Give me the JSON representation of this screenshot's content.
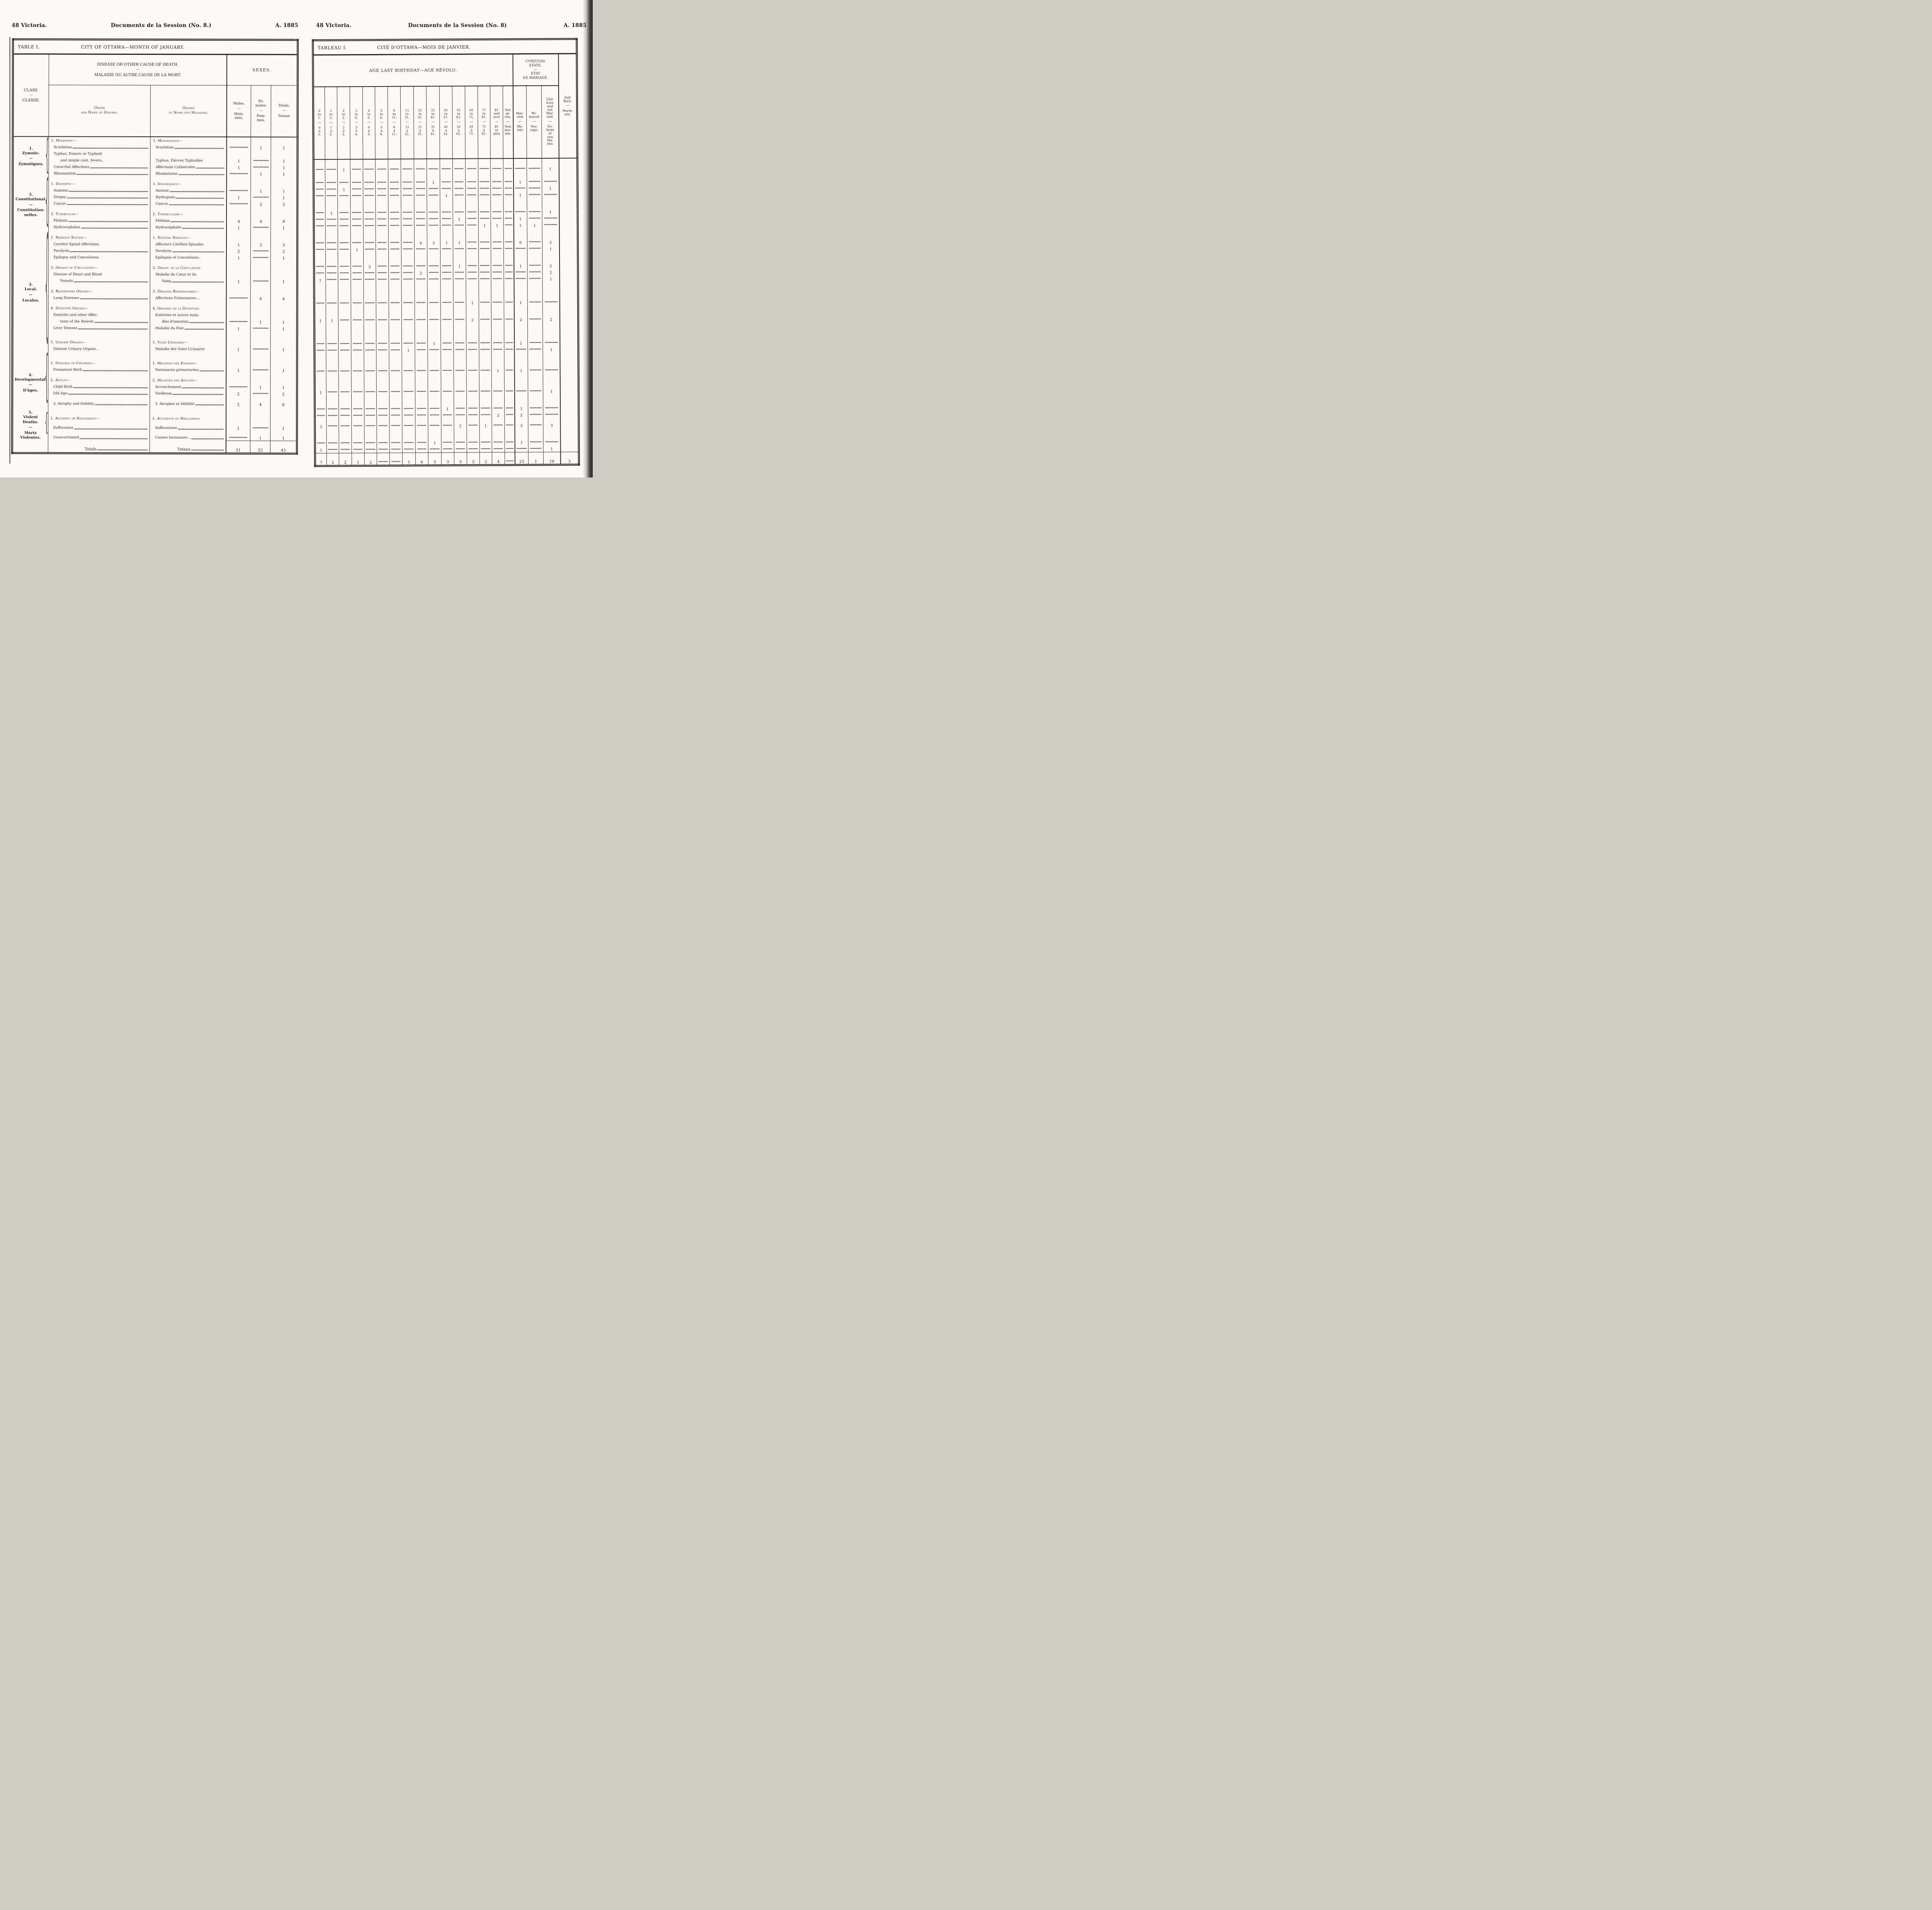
{
  "page_left": {
    "running_header": {
      "left": "48 Victoria.",
      "center": "Documents de la Session (No. 8.)",
      "right": "A. 1885"
    },
    "table": {
      "title": "TABLE I.",
      "caption": "CITY OF OTTAWA—MONTH OF JANUARY.",
      "header": {
        "class": [
          "CLASS.",
          "—",
          "CLASSE."
        ],
        "disease": [
          "DISEASE OR OTHER CAUSE OF DEATH.",
          "—",
          "MALADIE OU AUTRE CAUSE DE LA MORT."
        ],
        "order_en": [
          "Order",
          "and Name of Disease."
        ],
        "order_fr": [
          "Ordres",
          "et Noms des Maladies."
        ],
        "sexes": "SEXES.",
        "males": {
          "en": "Males.",
          "fr": "Hom- mes."
        },
        "females": {
          "en": "Fe- males.",
          "fr": "Fem- mes."
        },
        "totals": {
          "en": "Totals.",
          "fr": "Totaux"
        }
      }
    }
  },
  "page_right": {
    "running_header": {
      "left": "48 Victoria.",
      "center": "Documents de la Session (No. 8)",
      "right": "A. 1885"
    },
    "table": {
      "title": "TABLEAU I.",
      "caption": "CITÉ D'OTTAWA—MOIS DE JANVIER.",
      "age_group": "AGE LAST BIRTHDAY—AGE RÉVOLU.",
      "conjugal_group": [
        "CONJUGAL",
        "STATE.",
        "—",
        "ÉTAT",
        "DE MARIAGE."
      ],
      "age_cols": [
        [
          "0 to 1.",
          "0 à 1."
        ],
        [
          "1 to 2.",
          "1 à 2."
        ],
        [
          "2 to 3.",
          "2 à 3."
        ],
        [
          "3 to 4.",
          "3 à 4."
        ],
        [
          "4 to 5.",
          "4 à 5."
        ],
        [
          "5 to 6.",
          "5 à 6."
        ],
        [
          "6 to 11.",
          "6 à 11."
        ],
        [
          "11 to 21.",
          "11 à 21."
        ],
        [
          "21 to 31.",
          "21 à 31."
        ],
        [
          "31 to 41.",
          "31 à 41."
        ],
        [
          "41 to 51.",
          "41 à 51."
        ],
        [
          "51 to 61.",
          "51 à 61."
        ],
        [
          "61 to 71.",
          "61 à 71."
        ],
        [
          "71 to 81.",
          "71 à 81."
        ],
        [
          "81 and over",
          "81 et plus"
        ],
        [
          "Not gi- ven.",
          "Non don- nés."
        ]
      ],
      "conjugal_cols": [
        [
          "Mar- ried",
          "Ma- riés"
        ],
        [
          "Wi- dowed",
          "Veu- vage."
        ],
        [
          "Chil- dren and not Mar- ried.",
          "En- fants et non Ma- riés."
        ]
      ],
      "stillborn_col": [
        "Still Born.",
        "Morts- nés."
      ]
    }
  },
  "classes": [
    {
      "num": "1.",
      "en": "Zymotic.",
      "fr": "Zymotiques.",
      "rows": [
        {
          "t": "g",
          "en": "1. Miasmatic—",
          "fr": "1. Miasmatique—"
        },
        {
          "t": "v",
          "en": "Scarlatina",
          "fr": "Scarlatine",
          "le": 1,
          "lf": 1,
          "m": "",
          "f": "1",
          "tt": "1",
          "a": {
            "3": "1",
            "19": "1"
          }
        },
        {
          "t": "l",
          "en": "Typhus, Enteric or Typhoid",
          "fr": ""
        },
        {
          "t": "v",
          "en": "and simple cont. fevers..",
          "fr": "Typhus, Fièvres Typhoïdes",
          "ie": 1,
          "m": "1",
          "f": "",
          "tt": "1",
          "a": {
            "10": "1",
            "17": "1"
          }
        },
        {
          "t": "v",
          "en": "Catarrhal Affections",
          "fr": "Affections Catharrales",
          "le": 1,
          "lf": 1,
          "m": "1",
          "f": "",
          "tt": "1",
          "a": {
            "3": "1",
            "19": "1"
          }
        },
        {
          "t": "v",
          "en": "Rheumatism",
          "fr": "Rhumatisme",
          "le": 1,
          "lf": 1,
          "m": "",
          "f": "1",
          "tt": "1",
          "a": {
            "11": "1",
            "17": "1"
          }
        }
      ]
    },
    {
      "num": "2.",
      "en": "Constitutional.",
      "fr": "Constitution- nelles.",
      "rows": [
        {
          "t": "g",
          "en": "1. Diathetic—",
          "fr": "1. Diathésique—",
          "gap": 1
        },
        {
          "t": "v",
          "en": "Anæmia",
          "fr": "Anémie",
          "le": 1,
          "lf": 1,
          "m": "",
          "f": "1",
          "tt": "1",
          "a": {
            "2": "1",
            "19": "1"
          }
        },
        {
          "t": "v",
          "en": "Dropsy",
          "fr": "Hydropisie",
          "le": 1,
          "lf": 1,
          "m": "1",
          "f": "",
          "tt": "1",
          "a": {
            "12": "1",
            "17": "1"
          }
        },
        {
          "t": "v",
          "en": "Cancer",
          "fr": "Cancer",
          "le": 1,
          "lf": 1,
          "m": "",
          "f": "2",
          "tt": "2",
          "a": {
            "14": "1",
            "15": "1",
            "17": "1",
            "18": "1"
          }
        },
        {
          "t": "g",
          "en": "2. Tubercular—",
          "fr": "2. Tuberculaire—",
          "gap": 1
        },
        {
          "t": "v",
          "en": "Phthisis",
          "fr": "Phthisie",
          "le": 1,
          "lf": 1,
          "m": "4",
          "f": "4",
          "tt": "8",
          "a": {
            "9": "4",
            "10": "2",
            "11": "1",
            "12": "1",
            "17": "6",
            "19": "2"
          }
        },
        {
          "t": "v",
          "en": "Hydrocephalus",
          "fr": "Hydrocéphalie",
          "le": 1,
          "lf": 1,
          "m": "1",
          "f": "",
          "tt": "1",
          "a": {
            "4": "1",
            "19": "1"
          }
        }
      ]
    },
    {
      "num": "3.",
      "en": "Local.",
      "fr": "Locales.",
      "rows": [
        {
          "t": "g",
          "en": "1. Nervous System—",
          "fr": "1. Système Nerveux—",
          "gap": 1
        },
        {
          "t": "v",
          "en": "Cerebro Spinal Affections.",
          "fr": "Affectio's Cérébro-Spinales",
          "m": "1",
          "f": "2",
          "tt": "3",
          "a": {
            "5": "2",
            "12": "1",
            "17": "1",
            "19": "2"
          }
        },
        {
          "t": "v",
          "en": "Paralysis",
          "fr": "Paralysie",
          "le": 1,
          "lf": 1,
          "m": "2",
          "f": "",
          "tt": "2",
          "a": {
            "9": "2",
            "19": "2"
          }
        },
        {
          "t": "v",
          "en": "Epilepsy and Convulsions.",
          "fr": "Epilepsie et Convulsions..",
          "m": "1",
          "f": "",
          "tt": "1",
          "a": {
            "1": "1",
            "19": "1"
          }
        },
        {
          "t": "g",
          "en": "2. Organs of Circulation—",
          "fr": "2. Organ. de la Circulation.",
          "gap": 1
        },
        {
          "t": "l",
          "en": "Disease of Heart and Blood",
          "fr": "Maladie du Cœur et du"
        },
        {
          "t": "v",
          "en": "Vessels",
          "fr": "Sang",
          "ie": 1,
          "if": 1,
          "le": 1,
          "lf": 1,
          "m": "1",
          "f": "",
          "tt": "1",
          "a": {
            "13": "1",
            "17": "1"
          }
        },
        {
          "t": "g",
          "en": "3. Respiratory Organs—",
          "fr": "3. Organes Respiratoires—",
          "gap": 1
        },
        {
          "t": "v",
          "en": "Lung Diseases",
          "fr": "Affections Pulmonaires....",
          "le": 1,
          "m": "",
          "f": "4",
          "tt": "4",
          "a": {
            "1": "1",
            "2": "1",
            "13": "2",
            "17": "2",
            "19": "2"
          }
        },
        {
          "t": "g",
          "en": "4. Digestive Organs—",
          "fr": "4. Organes de la Digestion.",
          "gap": 1
        },
        {
          "t": "l",
          "en": "Enteritis and other Affec-",
          "fr": "Entérites et autres mala-"
        },
        {
          "t": "v",
          "en": "tions of the Bowels",
          "fr": "dies d'intestins",
          "ie": 1,
          "if": 1,
          "le": 1,
          "lf": 1,
          "m": "",
          "f": "1",
          "tt": "1",
          "a": {
            "10": "1",
            "17": "1"
          }
        },
        {
          "t": "v",
          "en": "Liver Disease",
          "fr": "Maladie du Foie",
          "le": 1,
          "lf": 1,
          "m": "1",
          "f": "",
          "tt": "1",
          "a": {
            "8": "1",
            "19": "1"
          }
        },
        {
          "t": "g",
          "en": "5. Urinary Organs—",
          "fr": "5. Voies Urinaires—",
          "gap": 2
        },
        {
          "t": "v",
          "en": "Disease Urinary Organs...",
          "fr": "Maladie des Voies Urinaires",
          "m": "1",
          "f": "",
          "tt": "1",
          "a": {
            "15": "1",
            "17": "1"
          }
        }
      ]
    },
    {
      "num": "4.",
      "en": "Developmental.",
      "fr": "D'âges.",
      "rows": [
        {
          "t": "g",
          "en": "1. Diseases of Children—",
          "fr": "1. Maladies des Enfants—",
          "gap": 2
        },
        {
          "t": "v",
          "en": "Premature Birth",
          "fr": "Naissances prématurées",
          "le": 1,
          "lf": 1,
          "m": "1",
          "f": "",
          "tt": "1",
          "a": {
            "1": "1",
            "19": "1"
          }
        },
        {
          "t": "g",
          "en": "2. Adults—",
          "fr": "2. Maladies des Adultes—",
          "gap": 1
        },
        {
          "t": "v",
          "en": "Child Birth",
          "fr": "Accouchement",
          "le": 1,
          "lf": 1,
          "m": "",
          "f": "1",
          "tt": "1",
          "a": {
            "11": "1",
            "17": "1"
          }
        },
        {
          "t": "v",
          "en": "Old Age",
          "fr": "Vieillesse",
          "le": 1,
          "lf": 1,
          "m": "2",
          "f": "",
          "tt": "2",
          "a": {
            "15": "2",
            "17": "2"
          }
        },
        {
          "t": "v",
          "en": "3. Atrophy and Debility",
          "fr": "3. Atrophie et Débilité",
          "le": 1,
          "lf": 1,
          "gap": 1,
          "m": "2",
          "f": "4",
          "tt": "6",
          "a": {
            "1": "3",
            "12": "2",
            "14": "1",
            "17": "3",
            "19": "3"
          }
        }
      ]
    },
    {
      "num": "5.",
      "en": "Violent Deaths.",
      "fr": "Morts Violentes.",
      "rows": [
        {
          "t": "g",
          "en": "1. Accident or Negligence—",
          "fr": "1. Accidents ou Négligence.",
          "gap": 1
        },
        {
          "t": "v",
          "en": "Suffocation",
          "fr": "Suffocations",
          "le": 1,
          "lf": 1,
          "m": "1",
          "f": "",
          "tt": "1",
          "a": {
            "10": "1",
            "17": "1"
          }
        },
        {
          "t": "v",
          "en": "Unascertained",
          "fr": "Causes Inconnues...",
          "le": 1,
          "lf": 1,
          "m": "",
          "f": "1",
          "tt": "1",
          "a": {
            "1": "1",
            "19": "1"
          }
        }
      ]
    }
  ],
  "totals": {
    "en": "Totals",
    "fr": "Totaux",
    "m": "21",
    "f": "22",
    "tt": "43",
    "a": {
      "1": "7",
      "2": "2",
      "3": "2",
      "4": "1",
      "5": "2",
      "8": "1",
      "9": "6",
      "10": "5",
      "11": "3",
      "12": "5",
      "13": "3",
      "14": "2",
      "15": "4",
      "17": "23",
      "18": "1",
      "19": "19",
      "20": "3"
    }
  }
}
